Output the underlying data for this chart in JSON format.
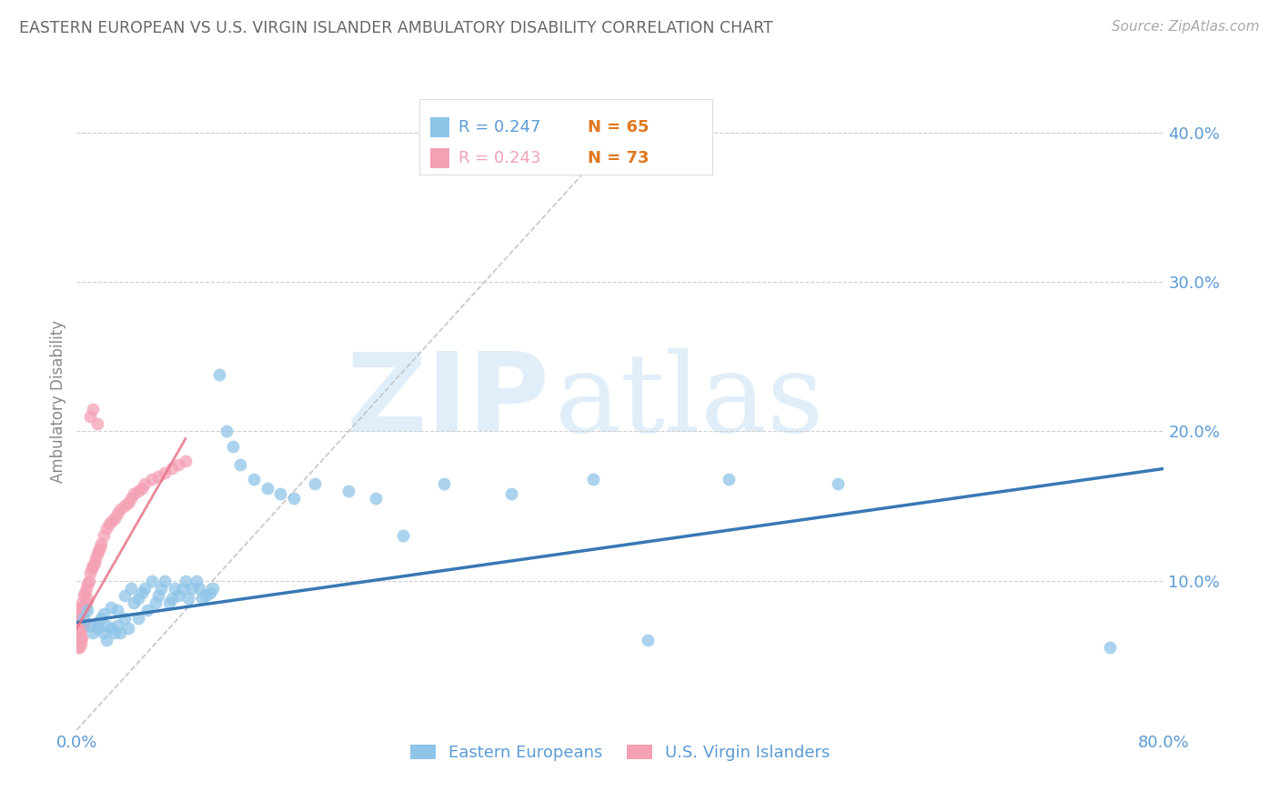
{
  "title": "EASTERN EUROPEAN VS U.S. VIRGIN ISLANDER AMBULATORY DISABILITY CORRELATION CHART",
  "source": "Source: ZipAtlas.com",
  "ylabel": "Ambulatory Disability",
  "xlim": [
    0.0,
    0.8
  ],
  "ylim": [
    0.0,
    0.44
  ],
  "yticks_right": [
    0.1,
    0.2,
    0.3,
    0.4
  ],
  "ytick_right_labels": [
    "10.0%",
    "20.0%",
    "30.0%",
    "40.0%"
  ],
  "legend_blue_r": "R = 0.247",
  "legend_blue_n": "N = 65",
  "legend_pink_r": "R = 0.243",
  "legend_pink_n": "N = 73",
  "legend_blue_label": "Eastern Europeans",
  "legend_pink_label": "U.S. Virgin Islanders",
  "watermark_zip": "ZIP",
  "watermark_atlas": "atlas",
  "blue_color": "#8fc5e8",
  "pink_color": "#f4a0b5",
  "blue_line_color": "#3878b4",
  "pink_line_color": "#e8748a",
  "title_color": "#666666",
  "axis_color": "#5b9bd5",
  "grid_color": "#d0d0d0",
  "blue_scatter_x": [
    0.005,
    0.008,
    0.01,
    0.012,
    0.015,
    0.015,
    0.018,
    0.02,
    0.02,
    0.022,
    0.022,
    0.025,
    0.025,
    0.028,
    0.03,
    0.03,
    0.032,
    0.035,
    0.035,
    0.038,
    0.04,
    0.042,
    0.045,
    0.045,
    0.048,
    0.05,
    0.052,
    0.055,
    0.058,
    0.06,
    0.062,
    0.065,
    0.068,
    0.07,
    0.072,
    0.075,
    0.078,
    0.08,
    0.082,
    0.085,
    0.088,
    0.09,
    0.092,
    0.095,
    0.098,
    0.1,
    0.105,
    0.11,
    0.115,
    0.12,
    0.13,
    0.14,
    0.15,
    0.16,
    0.175,
    0.2,
    0.22,
    0.24,
    0.27,
    0.32,
    0.38,
    0.42,
    0.48,
    0.56,
    0.76
  ],
  "blue_scatter_y": [
    0.075,
    0.08,
    0.07,
    0.065,
    0.068,
    0.072,
    0.075,
    0.065,
    0.078,
    0.07,
    0.06,
    0.082,
    0.068,
    0.065,
    0.08,
    0.07,
    0.065,
    0.09,
    0.075,
    0.068,
    0.095,
    0.085,
    0.088,
    0.075,
    0.092,
    0.095,
    0.08,
    0.1,
    0.085,
    0.09,
    0.095,
    0.1,
    0.085,
    0.088,
    0.095,
    0.09,
    0.095,
    0.1,
    0.088,
    0.095,
    0.1,
    0.095,
    0.088,
    0.09,
    0.092,
    0.095,
    0.238,
    0.2,
    0.19,
    0.178,
    0.168,
    0.162,
    0.158,
    0.155,
    0.165,
    0.16,
    0.155,
    0.13,
    0.165,
    0.158,
    0.168,
    0.06,
    0.168,
    0.165,
    0.055
  ],
  "pink_scatter_x": [
    0.001,
    0.001,
    0.001,
    0.001,
    0.001,
    0.001,
    0.001,
    0.001,
    0.001,
    0.001,
    0.002,
    0.002,
    0.002,
    0.002,
    0.002,
    0.002,
    0.002,
    0.002,
    0.002,
    0.002,
    0.003,
    0.003,
    0.003,
    0.003,
    0.003,
    0.003,
    0.004,
    0.004,
    0.004,
    0.004,
    0.005,
    0.005,
    0.005,
    0.006,
    0.006,
    0.006,
    0.007,
    0.007,
    0.008,
    0.008,
    0.009,
    0.01,
    0.011,
    0.012,
    0.013,
    0.014,
    0.015,
    0.016,
    0.017,
    0.018,
    0.02,
    0.022,
    0.024,
    0.026,
    0.028,
    0.03,
    0.032,
    0.035,
    0.038,
    0.04,
    0.042,
    0.045,
    0.048,
    0.05,
    0.055,
    0.06,
    0.065,
    0.07,
    0.075,
    0.08,
    0.01,
    0.012,
    0.015
  ],
  "pink_scatter_y": [
    0.07,
    0.075,
    0.08,
    0.065,
    0.06,
    0.072,
    0.068,
    0.055,
    0.062,
    0.058,
    0.075,
    0.08,
    0.07,
    0.065,
    0.06,
    0.055,
    0.072,
    0.068,
    0.058,
    0.062,
    0.078,
    0.082,
    0.072,
    0.068,
    0.062,
    0.058,
    0.085,
    0.075,
    0.068,
    0.062,
    0.09,
    0.08,
    0.07,
    0.092,
    0.082,
    0.072,
    0.095,
    0.085,
    0.098,
    0.088,
    0.1,
    0.105,
    0.108,
    0.11,
    0.112,
    0.115,
    0.118,
    0.12,
    0.122,
    0.125,
    0.13,
    0.135,
    0.138,
    0.14,
    0.142,
    0.145,
    0.148,
    0.15,
    0.152,
    0.155,
    0.158,
    0.16,
    0.162,
    0.165,
    0.168,
    0.17,
    0.172,
    0.175,
    0.178,
    0.18,
    0.21,
    0.215,
    0.205
  ],
  "blue_trend_x": [
    0.0,
    0.8
  ],
  "blue_trend_y": [
    0.072,
    0.175
  ],
  "pink_trend_x": [
    0.0,
    0.08
  ],
  "pink_trend_y": [
    0.068,
    0.195
  ],
  "diag_line_x": [
    0.0,
    0.42
  ],
  "diag_line_y": [
    0.0,
    0.42
  ]
}
